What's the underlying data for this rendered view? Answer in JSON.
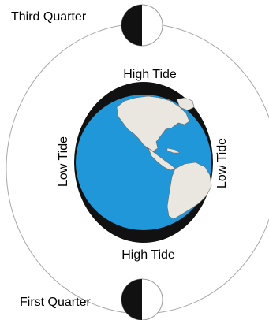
{
  "labels": {
    "third_quarter": "Third Quarter",
    "first_quarter": "First Quarter",
    "high_tide_top": "High Tide",
    "high_tide_bottom": "High Tide",
    "low_tide_left": "Low Tide",
    "low_tide_right": "Low Tide"
  },
  "colors": {
    "ocean": "#1f97d9",
    "land": "#e9e7df",
    "tidal_bulge": "#111111",
    "orbit": "#a8a8a8",
    "moon_light": "#ffffff",
    "moon_dark": "#111111"
  }
}
